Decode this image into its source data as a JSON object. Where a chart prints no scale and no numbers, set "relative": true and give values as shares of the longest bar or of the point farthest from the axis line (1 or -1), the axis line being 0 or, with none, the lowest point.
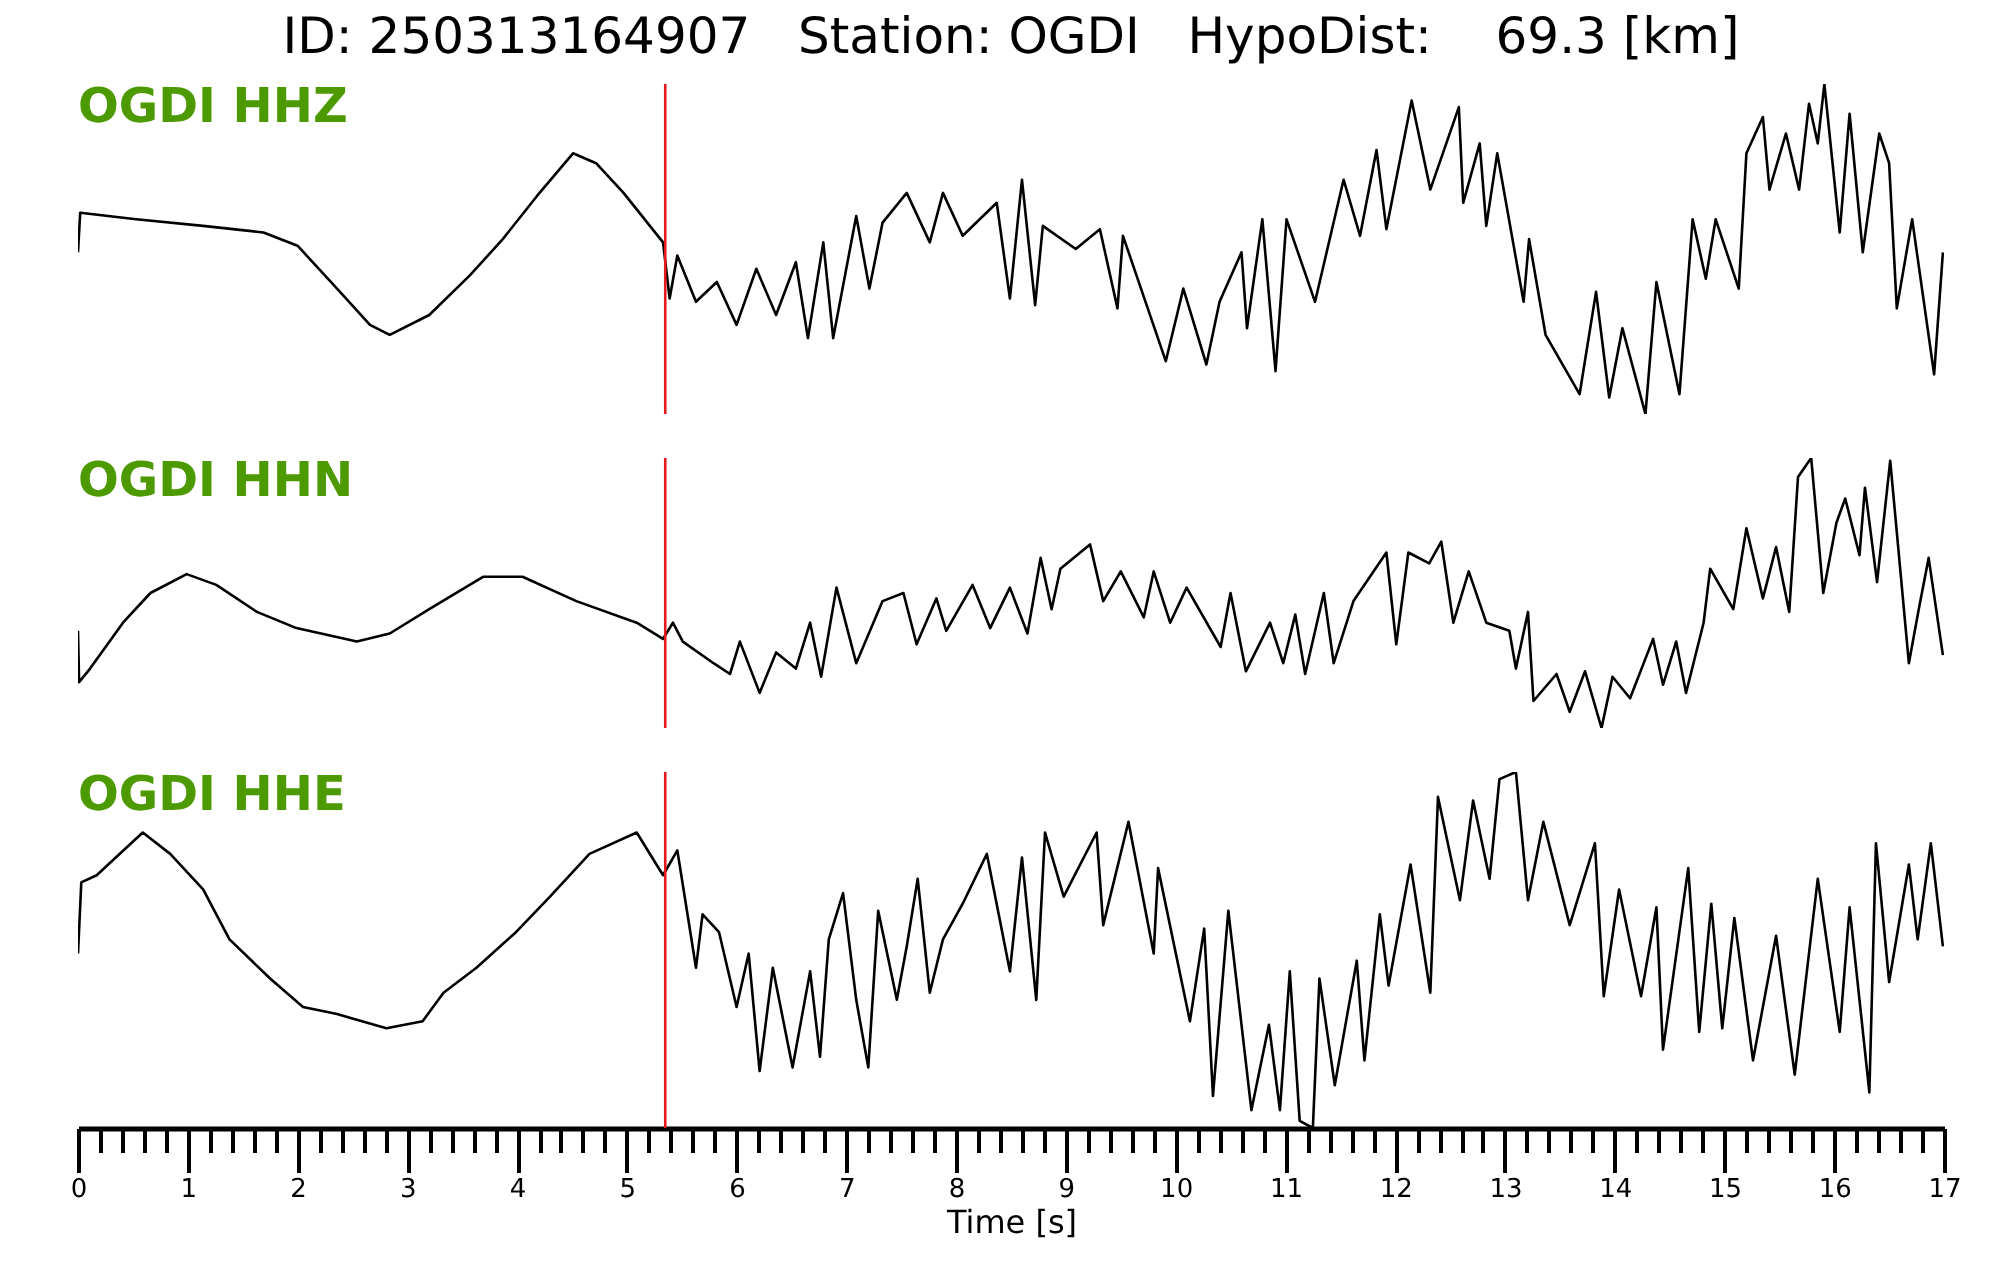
{
  "chart_data": [
    {
      "type": "line",
      "title": "ID: 250313164907   Station: OGDI   HypoDist:    69.3 [km]",
      "relative": true,
      "xlim": [
        0,
        17
      ],
      "tick_labels": false,
      "ref_lines": [
        {
          "axis": "x",
          "value": 5.35,
          "color": "#e41a1c"
        }
      ],
      "series": [
        {
          "name": "OGDI HHZ",
          "color": "#000000",
          "x": [
            0,
            0.02,
            0.53,
            1.14,
            1.69,
            2.0,
            2.36,
            2.66,
            2.84,
            3.2,
            3.57,
            3.87,
            4.18,
            4.51,
            4.72,
            4.97,
            5.33,
            5.39,
            5.46,
            5.63,
            5.82,
            6.0,
            6.18,
            6.36,
            6.54,
            6.65,
            6.79,
            6.88,
            7.09,
            7.21,
            7.33,
            7.55,
            7.76,
            7.88,
            8.06,
            8.37,
            8.49,
            8.6,
            8.72,
            8.79,
            9.09,
            9.31,
            9.47,
            9.52,
            9.91,
            10.07,
            10.28,
            10.4,
            10.6,
            10.65,
            10.79,
            10.91,
            11.01,
            11.27,
            11.53,
            11.68,
            11.83,
            11.92,
            12.15,
            12.32,
            12.58,
            12.62,
            12.77,
            12.83,
            12.93,
            13.17,
            13.22,
            13.37,
            13.68,
            13.83,
            13.95,
            14.07,
            14.28,
            14.38,
            14.59,
            14.71,
            14.83,
            14.92,
            15.13,
            15.2,
            15.35,
            15.41,
            15.56,
            15.68,
            15.77,
            15.85,
            15.91,
            16.05,
            16.14,
            16.26,
            16.41,
            16.5,
            16.57,
            16.71,
            16.91,
            16.99
          ],
          "values": [
            0.49,
            0.61,
            0.59,
            0.57,
            0.55,
            0.51,
            0.38,
            0.27,
            0.24,
            0.3,
            0.42,
            0.53,
            0.66,
            0.79,
            0.76,
            0.67,
            0.52,
            0.35,
            0.48,
            0.34,
            0.4,
            0.27,
            0.44,
            0.3,
            0.46,
            0.23,
            0.52,
            0.23,
            0.6,
            0.38,
            0.58,
            0.67,
            0.52,
            0.67,
            0.54,
            0.64,
            0.35,
            0.71,
            0.33,
            0.57,
            0.5,
            0.56,
            0.32,
            0.54,
            0.16,
            0.38,
            0.15,
            0.34,
            0.49,
            0.26,
            0.59,
            0.13,
            0.59,
            0.34,
            0.71,
            0.54,
            0.8,
            0.56,
            0.95,
            0.68,
            0.93,
            0.64,
            0.82,
            0.57,
            0.79,
            0.34,
            0.53,
            0.24,
            0.06,
            0.37,
            0.05,
            0.26,
            0,
            0.4,
            0.06,
            0.59,
            0.41,
            0.59,
            0.38,
            0.79,
            0.9,
            0.68,
            0.85,
            0.68,
            0.94,
            0.82,
            1,
            0.55,
            0.91,
            0.49,
            0.85,
            0.76,
            0.32,
            0.59,
            0.12,
            0.49
          ]
        }
      ]
    },
    {
      "type": "line",
      "relative": true,
      "xlim": [
        0,
        17
      ],
      "tick_labels": false,
      "ref_lines": [
        {
          "axis": "x",
          "value": 5.35,
          "color": "#e41a1c"
        }
      ],
      "series": [
        {
          "name": "OGDI HHN",
          "color": "#000000",
          "x": [
            0,
            0.01,
            0.11,
            0.41,
            0.66,
            0.99,
            1.26,
            1.63,
            1.99,
            2.54,
            2.84,
            3.2,
            3.69,
            4.05,
            4.54,
            5.09,
            5.33,
            5.42,
            5.51,
            5.79,
            5.94,
            6.03,
            6.21,
            6.36,
            6.54,
            6.67,
            6.77,
            6.91,
            7.09,
            7.33,
            7.52,
            7.64,
            7.82,
            7.91,
            8.15,
            8.31,
            8.49,
            8.65,
            8.77,
            8.87,
            8.95,
            9.22,
            9.34,
            9.5,
            9.71,
            9.8,
            9.95,
            10.1,
            10.41,
            10.5,
            10.64,
            10.86,
            10.98,
            11.09,
            11.18,
            11.35,
            11.44,
            11.62,
            11.92,
            12.01,
            12.12,
            12.31,
            12.42,
            12.53,
            12.67,
            12.83,
            13.04,
            13.1,
            13.21,
            13.26,
            13.47,
            13.59,
            13.73,
            13.88,
            13.98,
            14.14,
            14.35,
            14.44,
            14.56,
            14.65,
            14.81,
            14.87,
            15.08,
            15.2,
            15.35,
            15.47,
            15.59,
            15.67,
            15.79,
            15.9,
            16.02,
            16.1,
            16.23,
            16.28,
            16.39,
            16.51,
            16.68,
            16.77,
            16.86,
            16.99
          ],
          "values": [
            0.36,
            0.17,
            0.22,
            0.39,
            0.5,
            0.57,
            0.53,
            0.43,
            0.37,
            0.32,
            0.35,
            0.44,
            0.56,
            0.56,
            0.47,
            0.39,
            0.33,
            0.39,
            0.32,
            0.24,
            0.2,
            0.32,
            0.13,
            0.28,
            0.22,
            0.39,
            0.19,
            0.52,
            0.24,
            0.47,
            0.5,
            0.31,
            0.48,
            0.36,
            0.53,
            0.37,
            0.52,
            0.35,
            0.63,
            0.44,
            0.59,
            0.68,
            0.47,
            0.58,
            0.41,
            0.58,
            0.39,
            0.52,
            0.3,
            0.5,
            0.21,
            0.39,
            0.24,
            0.42,
            0.2,
            0.5,
            0.24,
            0.47,
            0.65,
            0.31,
            0.65,
            0.61,
            0.69,
            0.39,
            0.58,
            0.39,
            0.36,
            0.22,
            0.43,
            0.1,
            0.2,
            0.06,
            0.21,
            0,
            0.19,
            0.11,
            0.33,
            0.16,
            0.32,
            0.13,
            0.39,
            0.59,
            0.44,
            0.74,
            0.48,
            0.67,
            0.43,
            0.93,
            1,
            0.5,
            0.76,
            0.85,
            0.64,
            0.89,
            0.54,
            0.99,
            0.24,
            0.44,
            0.63,
            0.27
          ]
        }
      ]
    },
    {
      "type": "line",
      "relative": true,
      "xlim": [
        0,
        17
      ],
      "tick_labels": "x",
      "xlabel": "Time [s]",
      "xticks": [
        0,
        {
          "value": 0.2,
          "label": null
        },
        {
          "value": 0.4,
          "label": null
        },
        {
          "value": 0.6,
          "label": null
        },
        {
          "value": 0.8,
          "label": null
        },
        1,
        {
          "value": 1.2,
          "label": null
        },
        {
          "value": 1.4,
          "label": null
        },
        {
          "value": 1.6,
          "label": null
        },
        {
          "value": 1.8,
          "label": null
        },
        2,
        {
          "value": 2.2,
          "label": null
        },
        {
          "value": 2.4,
          "label": null
        },
        {
          "value": 2.6,
          "label": null
        },
        {
          "value": 2.8,
          "label": null
        },
        3,
        {
          "value": 3.2,
          "label": null
        },
        {
          "value": 3.4,
          "label": null
        },
        {
          "value": 3.6,
          "label": null
        },
        {
          "value": 3.8,
          "label": null
        },
        4,
        {
          "value": 4.2,
          "label": null
        },
        {
          "value": 4.4,
          "label": null
        },
        {
          "value": 4.6,
          "label": null
        },
        {
          "value": 4.8,
          "label": null
        },
        5,
        {
          "value": 5.2,
          "label": null
        },
        {
          "value": 5.4,
          "label": null
        },
        {
          "value": 5.6,
          "label": null
        },
        {
          "value": 5.8,
          "label": null
        },
        6,
        {
          "value": 6.2,
          "label": null
        },
        {
          "value": 6.4,
          "label": null
        },
        {
          "value": 6.6,
          "label": null
        },
        {
          "value": 6.8,
          "label": null
        },
        7,
        {
          "value": 7.2,
          "label": null
        },
        {
          "value": 7.4,
          "label": null
        },
        {
          "value": 7.6,
          "label": null
        },
        {
          "value": 7.8,
          "label": null
        },
        8,
        {
          "value": 8.2,
          "label": null
        },
        {
          "value": 8.4,
          "label": null
        },
        {
          "value": 8.6,
          "label": null
        },
        {
          "value": 8.8,
          "label": null
        },
        9,
        {
          "value": 9.2,
          "label": null
        },
        {
          "value": 9.4,
          "label": null
        },
        {
          "value": 9.6,
          "label": null
        },
        {
          "value": 9.8,
          "label": null
        },
        10,
        {
          "value": 10.2,
          "label": null
        },
        {
          "value": 10.4,
          "label": null
        },
        {
          "value": 10.6,
          "label": null
        },
        {
          "value": 10.8,
          "label": null
        },
        11,
        {
          "value": 11.2,
          "label": null
        },
        {
          "value": 11.4,
          "label": null
        },
        {
          "value": 11.6,
          "label": null
        },
        {
          "value": 11.8,
          "label": null
        },
        12,
        {
          "value": 12.2,
          "label": null
        },
        {
          "value": 12.4,
          "label": null
        },
        {
          "value": 12.6,
          "label": null
        },
        {
          "value": 12.8,
          "label": null
        },
        13,
        {
          "value": 13.2,
          "label": null
        },
        {
          "value": 13.4,
          "label": null
        },
        {
          "value": 13.6,
          "label": null
        },
        {
          "value": 13.8,
          "label": null
        },
        14,
        {
          "value": 14.2,
          "label": null
        },
        {
          "value": 14.4,
          "label": null
        },
        {
          "value": 14.6,
          "label": null
        },
        {
          "value": 14.8,
          "label": null
        },
        15,
        {
          "value": 15.2,
          "label": null
        },
        {
          "value": 15.4,
          "label": null
        },
        {
          "value": 15.6,
          "label": null
        },
        {
          "value": 15.8,
          "label": null
        },
        16,
        {
          "value": 16.2,
          "label": null
        },
        {
          "value": 16.4,
          "label": null
        },
        {
          "value": 16.6,
          "label": null
        },
        {
          "value": 16.8,
          "label": null
        },
        17
      ],
      "ref_lines": [
        {
          "axis": "x",
          "value": 5.35,
          "color": "#e41a1c"
        }
      ],
      "series": [
        {
          "name": "OGDI HHE",
          "color": "#000000",
          "x": [
            0,
            0.03,
            0.17,
            0.59,
            0.84,
            1.14,
            1.38,
            1.75,
            2.05,
            2.36,
            2.81,
            3.14,
            3.33,
            3.63,
            3.99,
            4.3,
            4.66,
            5.09,
            5.33,
            5.46,
            5.63,
            5.69,
            5.84,
            6.0,
            6.11,
            6.21,
            6.33,
            6.51,
            6.67,
            6.76,
            6.84,
            6.97,
            7.09,
            7.2,
            7.29,
            7.46,
            7.55,
            7.65,
            7.76,
            7.88,
            8.06,
            8.28,
            8.49,
            8.6,
            8.73,
            8.81,
            8.98,
            9.28,
            9.34,
            9.57,
            9.8,
            9.84,
            10.13,
            10.26,
            10.34,
            10.48,
            10.69,
            10.85,
            10.95,
            11.04,
            11.13,
            11.25,
            11.31,
            11.45,
            11.65,
            11.72,
            11.86,
            11.94,
            12.14,
            12.32,
            12.39,
            12.59,
            12.71,
            12.86,
            12.95,
            13.1,
            13.21,
            13.35,
            13.59,
            13.82,
            13.9,
            14.04,
            14.24,
            14.38,
            14.44,
            14.67,
            14.77,
            14.88,
            14.98,
            15.09,
            15.26,
            15.47,
            15.64,
            15.85,
            16.05,
            16.14,
            16.32,
            16.38,
            16.5,
            16.68,
            16.76,
            16.88,
            16.99
          ],
          "values": [
            0.49,
            0.69,
            0.71,
            0.83,
            0.77,
            0.67,
            0.53,
            0.42,
            0.34,
            0.32,
            0.28,
            0.3,
            0.38,
            0.45,
            0.55,
            0.65,
            0.77,
            0.83,
            0.71,
            0.78,
            0.45,
            0.6,
            0.55,
            0.34,
            0.49,
            0.16,
            0.45,
            0.17,
            0.44,
            0.2,
            0.53,
            0.66,
            0.36,
            0.17,
            0.61,
            0.36,
            0.51,
            0.7,
            0.38,
            0.53,
            0.63,
            0.77,
            0.44,
            0.76,
            0.36,
            0.83,
            0.65,
            0.83,
            0.57,
            0.86,
            0.49,
            0.73,
            0.3,
            0.56,
            0.09,
            0.61,
            0.05,
            0.29,
            0.05,
            0.44,
            0.02,
            0,
            0.42,
            0.12,
            0.47,
            0.19,
            0.6,
            0.4,
            0.74,
            0.38,
            0.93,
            0.64,
            0.92,
            0.7,
            0.98,
            1,
            0.64,
            0.86,
            0.57,
            0.8,
            0.37,
            0.67,
            0.37,
            0.62,
            0.22,
            0.73,
            0.27,
            0.63,
            0.28,
            0.59,
            0.19,
            0.54,
            0.15,
            0.7,
            0.27,
            0.62,
            0.1,
            0.8,
            0.41,
            0.74,
            0.53,
            0.8,
            0.51
          ]
        }
      ]
    }
  ]
}
